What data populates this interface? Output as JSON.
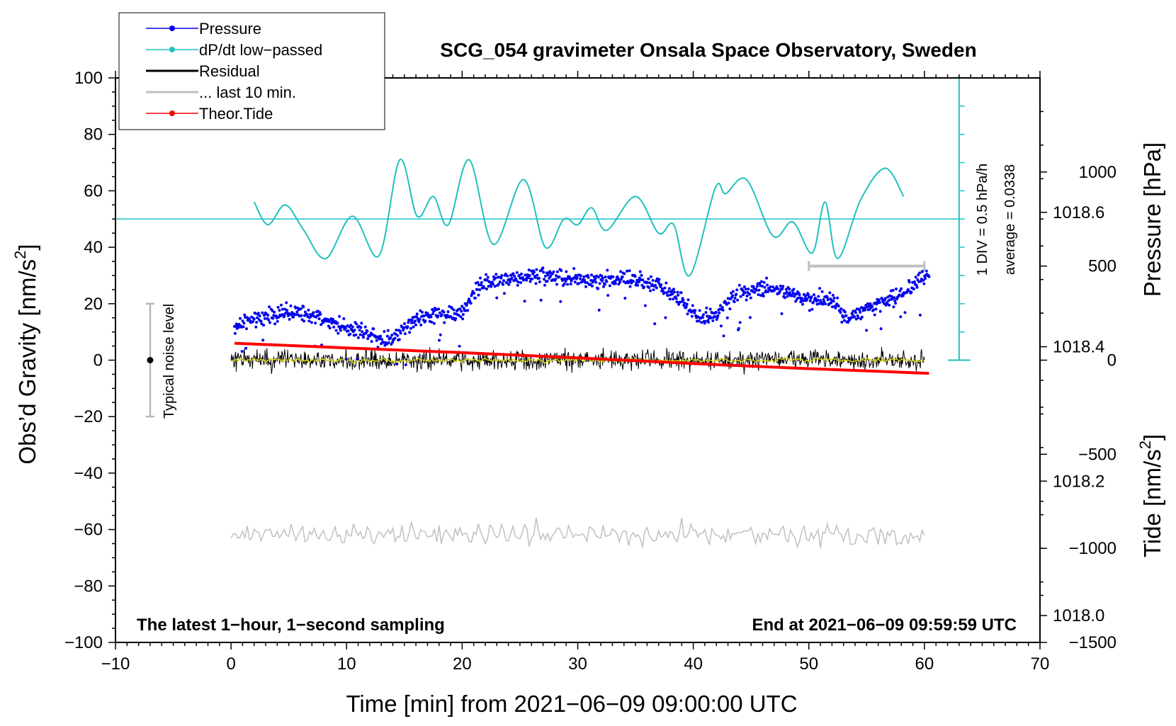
{
  "chart_data": {
    "type": "line",
    "title": "SCG_054 gravimeter Onsala Space Observatory, Sweden",
    "xlabel": "Time [min] from 2021−06−09 09:00:00 UTC",
    "ylabel_left_main": "Obs’d Gravity [nm/s",
    "ylabel_left_sup": "2",
    "ylabel_left_end": "]",
    "ylabel_right_top": "Pressure [hPa]",
    "ylabel_right_bottom_main": "Tide [nm/s",
    "ylabel_right_bottom_sup": "2",
    "ylabel_right_bottom_end": "]",
    "xlim": [
      -10,
      70
    ],
    "ylim_left": [
      -100,
      100
    ],
    "ylim_pressure": [
      1017.96,
      1018.8
    ],
    "ylim_tide": [
      -1500,
      1500
    ],
    "x_ticks": [
      -10,
      0,
      10,
      20,
      30,
      40,
      50,
      60,
      70
    ],
    "x_tick_labels": [
      "−10",
      "0",
      "10",
      "20",
      "30",
      "40",
      "50",
      "60",
      "70"
    ],
    "left_ticks": [
      100,
      80,
      60,
      40,
      20,
      0,
      -20,
      -40,
      -60,
      -80,
      -100
    ],
    "left_tick_labels": [
      "100",
      "80",
      "60",
      "40",
      "20",
      "0",
      "−20",
      "−40",
      "−60",
      "−80",
      "−100"
    ],
    "pressure_ticks": [
      1018.6,
      1018.4,
      1018.2,
      1018.0
    ],
    "pressure_tick_labels": [
      "1018.6",
      "1018.4",
      "1018.2",
      "1018.0"
    ],
    "tide_ticks": [
      1000,
      500,
      0,
      -500,
      -1000,
      -1500
    ],
    "tide_tick_labels": [
      "1000",
      "500",
      "0",
      "−500",
      "−1000",
      "−1500"
    ],
    "legend_placement": "top-left",
    "legend": [
      {
        "label": "Pressure",
        "color": "#0000ee",
        "marker": true
      },
      {
        "label": "dP/dt low−passed",
        "color": "#20c0c0",
        "marker": true
      },
      {
        "label": "Residual",
        "color": "#000000",
        "marker": false
      },
      {
        "label": "... last 10 min.",
        "color": "#c0c0c0",
        "marker": false
      },
      {
        "label": "Theor.Tide",
        "color": "#ff0000",
        "marker": true
      }
    ],
    "series": [
      {
        "name": "Pressure",
        "color": "#0000ee",
        "axis": "pressure",
        "x": [
          0.3,
          2,
          4,
          6,
          8,
          10,
          12,
          13.5,
          14.5,
          16,
          18,
          20,
          21.5,
          23,
          25,
          27,
          29,
          31,
          33,
          35,
          37,
          39,
          40.5,
          42,
          44,
          46,
          48,
          50,
          52,
          53.5,
          55,
          57,
          59,
          60.4
        ],
        "values": [
          1018.43,
          1018.44,
          1018.45,
          1018.45,
          1018.44,
          1018.43,
          1018.42,
          1018.41,
          1018.42,
          1018.44,
          1018.45,
          1018.45,
          1018.49,
          1018.5,
          1018.5,
          1018.51,
          1018.5,
          1018.5,
          1018.5,
          1018.5,
          1018.49,
          1018.47,
          1018.44,
          1018.45,
          1018.48,
          1018.49,
          1018.48,
          1018.47,
          1018.47,
          1018.44,
          1018.46,
          1018.47,
          1018.49,
          1018.51
        ]
      },
      {
        "name": "dP/dt low-passed",
        "color": "#20c0c0",
        "axis": "left",
        "x": [
          2,
          3.2,
          4.7,
          6.3,
          8.2,
          10.5,
          12.8,
          14.6,
          16.1,
          17.5,
          18.8,
          20.6,
          22.7,
          25.3,
          27.2,
          28.8,
          30,
          31.2,
          32.5,
          35,
          37,
          38.3,
          39.7,
          41.9,
          42.8,
          44.6,
          46.9,
          48.6,
          50.3,
          51.4,
          52.5,
          54.5,
          56.6,
          58.2
        ],
        "values": [
          56,
          48,
          55,
          46,
          36,
          51,
          37,
          71,
          51,
          58,
          48,
          71,
          41,
          64,
          40,
          50,
          48,
          54,
          46,
          58,
          45,
          48,
          30,
          61,
          59,
          64,
          44,
          49,
          38,
          56,
          36,
          57,
          68,
          58
        ]
      },
      {
        "name": "dP/dt average",
        "color": "#20c0c0",
        "axis": "left",
        "x": [
          -10,
          63
        ],
        "values": [
          50,
          50
        ]
      },
      {
        "name": "Residual",
        "color": "#000000",
        "axis": "left",
        "x": [
          0,
          60
        ],
        "values": [
          0,
          0
        ]
      },
      {
        "name": "... last 10 min.",
        "color": "#c0c0c0",
        "axis": "tide",
        "x": [
          50,
          60
        ],
        "values": [
          500,
          500
        ]
      },
      {
        "name": "Theor.Tide",
        "color": "#ff0000",
        "axis": "tide",
        "x": [
          0.3,
          10,
          20,
          30,
          40,
          50,
          60.4
        ],
        "values": [
          90,
          65,
          40,
          12,
          -18,
          -45,
          -70
        ]
      },
      {
        "name": "Residual (tide-axis copy)",
        "color": "#c0c0c0",
        "axis": "left",
        "x": [
          0,
          60
        ],
        "values": [
          -62,
          -62
        ]
      }
    ],
    "annotations": {
      "noise_bar": {
        "x": -7,
        "y": 0,
        "low": -20,
        "high": 20,
        "label": "Typical noise level"
      },
      "scale_bar": {
        "x": 63,
        "y0": 0,
        "y1": 100,
        "label1": "1 DIV = 0.5 hPa/h",
        "label2": "average = 0.0338"
      },
      "note_left": "The latest 1−hour, 1−second sampling",
      "note_right": "End at 2021−06−09 09:59:59 UTC"
    }
  }
}
